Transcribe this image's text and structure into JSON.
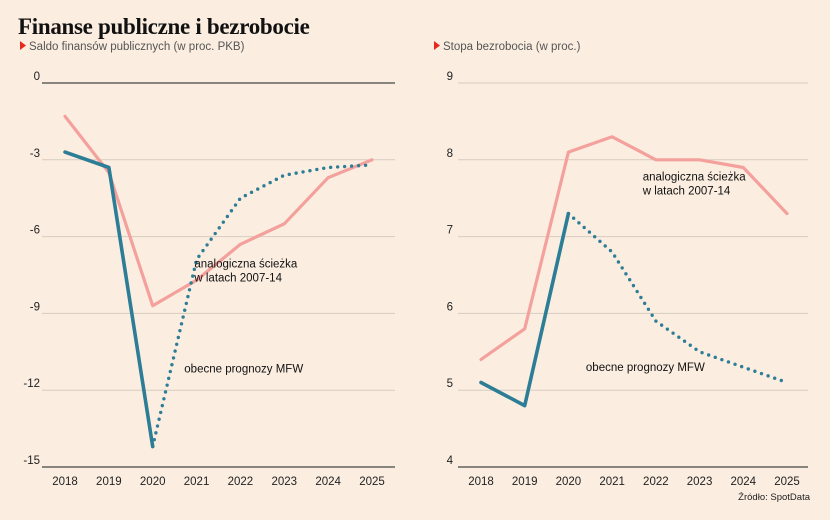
{
  "title": "Finanse publiczne i bezrobocie",
  "source": "Źródło: SpotData",
  "colors": {
    "background": "#fbeee1",
    "actual": "#2d7d96",
    "forecast": "#2d7d96",
    "analog": "#f4a09c",
    "marker": "#e8281e",
    "grid": "#d7ccc1",
    "axis": "#444444"
  },
  "chart_data": [
    {
      "type": "line",
      "subtitle": "Saldo finansów publicznych (w proc. PKB)",
      "x": [
        2018,
        2019,
        2020,
        2021,
        2022,
        2023,
        2024,
        2025
      ],
      "ylim": [
        -15,
        0
      ],
      "yticks": [
        0,
        -3,
        -6,
        -9,
        -12,
        -15
      ],
      "grid": true,
      "series": [
        {
          "role": "actual",
          "style": "solid",
          "x": [
            2018,
            2019,
            2020
          ],
          "values": [
            -2.7,
            -3.3,
            -14.2
          ]
        },
        {
          "role": "forecast",
          "name": "obecne prognozy MFW",
          "style": "dotted",
          "x": [
            2020,
            2021,
            2022,
            2023,
            2024,
            2025
          ],
          "values": [
            -14.2,
            -6.9,
            -4.5,
            -3.6,
            -3.3,
            -3.2
          ]
        },
        {
          "role": "analog",
          "name": "analogiczna ścieżka w latach 2007-14",
          "style": "solid",
          "x": [
            2018,
            2019,
            2020,
            2021,
            2022,
            2023,
            2024,
            2025
          ],
          "values": [
            -1.3,
            -3.5,
            -8.7,
            -7.7,
            -6.3,
            -5.5,
            -3.7,
            -3.0
          ]
        }
      ],
      "annotations": [
        {
          "lines": [
            "analogiczna ścieżka",
            "w latach 2007-14"
          ],
          "x": 2020.95,
          "y": -7.2
        },
        {
          "lines": [
            "obecne prognozy MFW"
          ],
          "x": 2020.72,
          "y": -11.3
        }
      ]
    },
    {
      "type": "line",
      "subtitle": "Stopa bezrobocia (w proc.)",
      "x": [
        2018,
        2019,
        2020,
        2021,
        2022,
        2023,
        2024,
        2025
      ],
      "ylim": [
        4,
        9
      ],
      "yticks": [
        9,
        8,
        7,
        6,
        5,
        4
      ],
      "grid": true,
      "series": [
        {
          "role": "actual",
          "style": "solid",
          "x": [
            2018,
            2019,
            2020
          ],
          "values": [
            5.1,
            4.8,
            7.3
          ]
        },
        {
          "role": "forecast",
          "name": "obecne prognozy MFW",
          "style": "dotted",
          "x": [
            2020,
            2021,
            2022,
            2023,
            2024,
            2025
          ],
          "values": [
            7.3,
            6.8,
            5.9,
            5.5,
            5.3,
            5.1
          ]
        },
        {
          "role": "analog",
          "name": "analogiczna ścieżka w latach 2007-14",
          "style": "solid",
          "x": [
            2018,
            2019,
            2020,
            2021,
            2022,
            2023,
            2024,
            2025
          ],
          "values": [
            5.4,
            5.8,
            8.1,
            8.3,
            8.0,
            8.0,
            7.9,
            7.3
          ]
        }
      ],
      "annotations": [
        {
          "lines": [
            "analogiczna ścieżka",
            "w latach 2007-14"
          ],
          "x": 2021.7,
          "y": 7.73
        },
        {
          "lines": [
            "obecne prognozy MFW"
          ],
          "x": 2020.4,
          "y": 5.25
        }
      ]
    }
  ]
}
